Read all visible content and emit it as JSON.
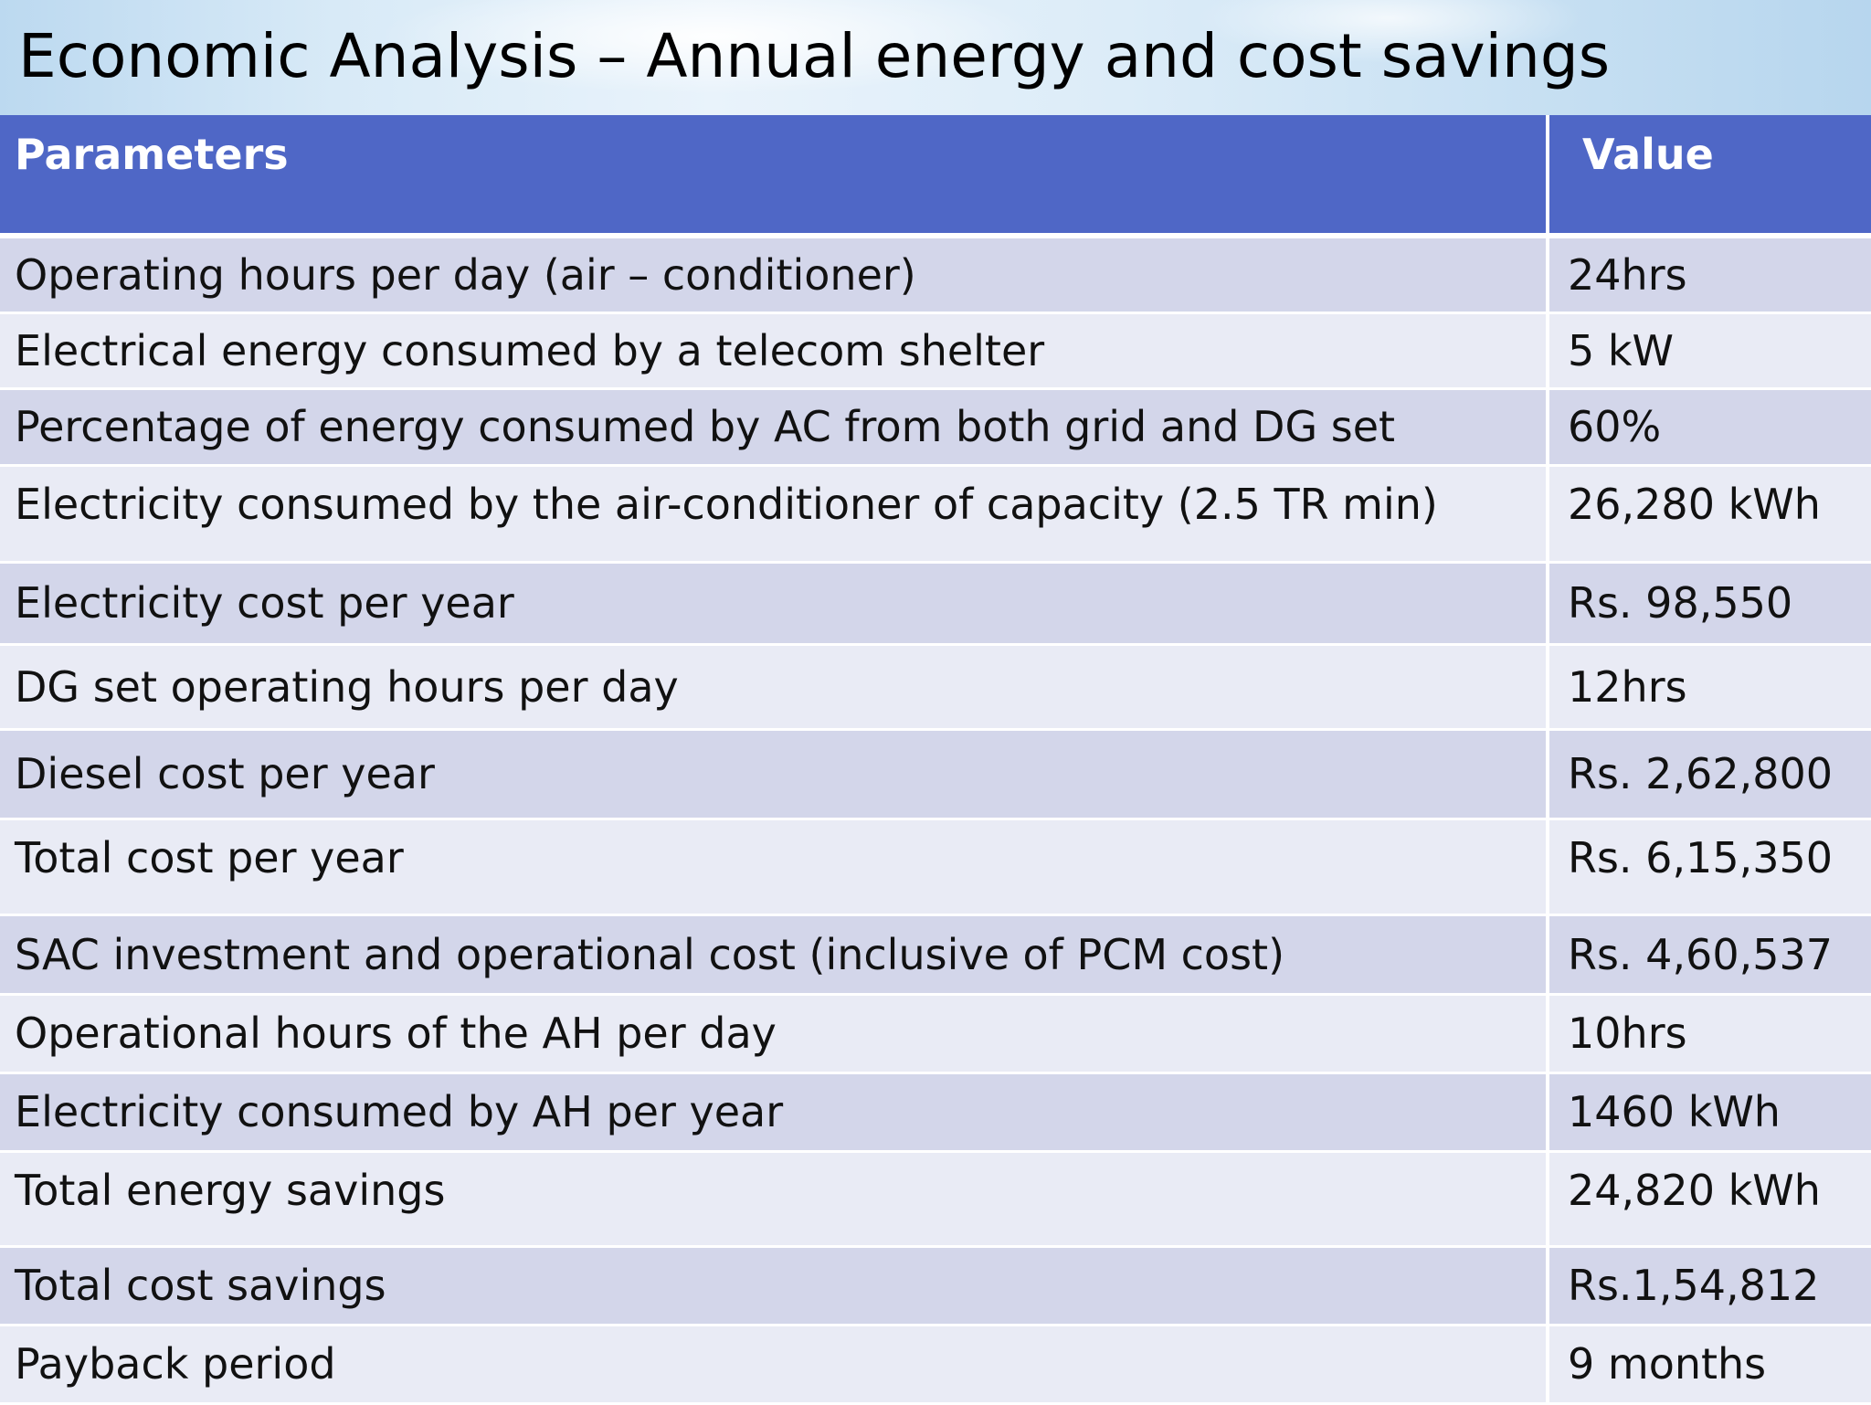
{
  "title": "Economic Analysis – Annual energy and cost savings",
  "colors": {
    "header_bg": "#4f67c6",
    "row_odd": "#d3d6ea",
    "row_even": "#e9ebf5",
    "title_bar": "#d8eaf7"
  },
  "table": {
    "headers": [
      "Parameters",
      "Value"
    ],
    "rows": [
      {
        "parameter": "Operating hours per day (air – conditioner)",
        "value": "24hrs"
      },
      {
        "parameter": "Electrical energy consumed by a telecom shelter",
        "value": "5 kW"
      },
      {
        "parameter": "Percentage of energy consumed by AC from both grid and DG set",
        "value": "60%"
      },
      {
        "parameter": "Electricity consumed by the air-conditioner of capacity (2.5 TR min)",
        "value": "26,280 kWh"
      },
      {
        "parameter": "Electricity cost per year",
        "value": "Rs. 98,550"
      },
      {
        "parameter": "DG set operating hours per day",
        "value": "12hrs"
      },
      {
        "parameter": "Diesel cost per year",
        "value": "Rs. 2,62,800"
      },
      {
        "parameter": "Total cost per year",
        "value": "Rs. 6,15,350"
      },
      {
        "parameter": "SAC investment and operational cost (inclusive of PCM cost)",
        "value": "Rs. 4,60,537"
      },
      {
        "parameter": "Operational hours of the AH per day",
        "value": "10hrs"
      },
      {
        "parameter": "Electricity consumed by AH per year",
        "value": "1460 kWh"
      },
      {
        "parameter": "Total energy savings",
        "value": "24,820 kWh"
      },
      {
        "parameter": "Total cost savings",
        "value": "Rs.1,54,812"
      },
      {
        "parameter": "Payback period",
        "value": "9 months"
      }
    ]
  }
}
